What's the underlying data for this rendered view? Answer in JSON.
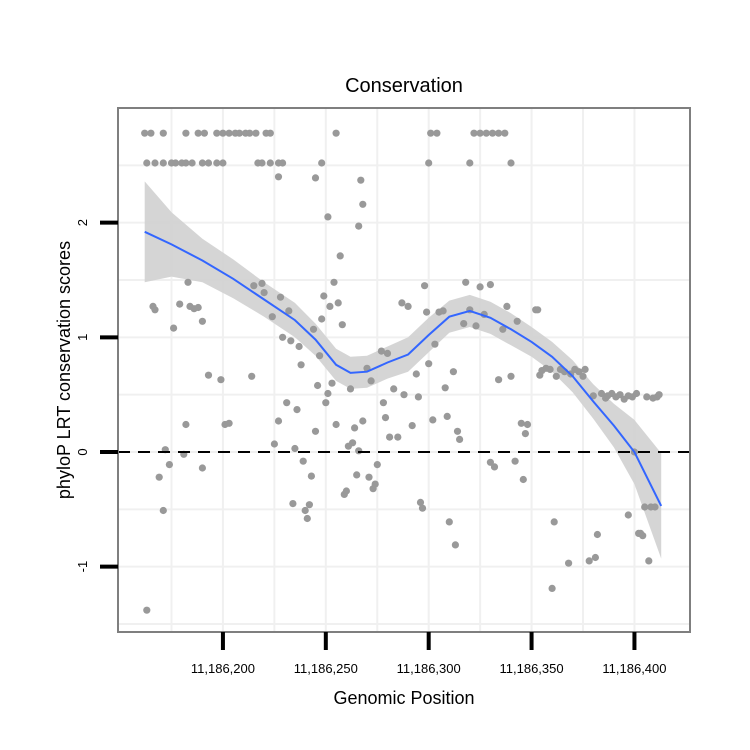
{
  "chart_data": {
    "type": "scatter",
    "title": "Conservation",
    "xlabel": "Genomic Position",
    "ylabel": "phyloP LRT conservation scores",
    "xlim": [
      11186149,
      11186427
    ],
    "ylim": [
      -1.57,
      3.0
    ],
    "x_ticks": [
      11186200,
      11186250,
      11186300,
      11186350,
      11186400
    ],
    "x_tick_labels": [
      "11,186,200",
      "11,186,250",
      "11,186,300",
      "11,186,350",
      "11,186,400"
    ],
    "y_ticks": [
      -1,
      0,
      1,
      2
    ],
    "y_tick_labels": [
      "-1",
      "0",
      "1",
      "2"
    ],
    "reference_line": {
      "y": 0,
      "style": "dashed",
      "color": "#000000"
    },
    "points_color": "#999999",
    "smooth_color": "#3366ff",
    "band_color": "#d0d0d0",
    "grid": true,
    "points": [
      [
        11186162,
        2.78
      ],
      [
        11186165,
        2.78
      ],
      [
        11186163,
        2.52
      ],
      [
        11186167,
        2.52
      ],
      [
        11186171,
        2.78
      ],
      [
        11186171,
        2.52
      ],
      [
        11186175,
        2.52
      ],
      [
        11186177,
        2.52
      ],
      [
        11186180,
        2.52
      ],
      [
        11186182,
        2.78
      ],
      [
        11186182,
        2.52
      ],
      [
        11186185,
        2.52
      ],
      [
        11186188,
        2.78
      ],
      [
        11186191,
        2.78
      ],
      [
        11186190,
        2.52
      ],
      [
        11186193,
        2.52
      ],
      [
        11186197,
        2.78
      ],
      [
        11186197,
        2.52
      ],
      [
        11186200,
        2.78
      ],
      [
        11186200,
        2.52
      ],
      [
        11186203,
        2.78
      ],
      [
        11186206,
        2.78
      ],
      [
        11186208,
        2.78
      ],
      [
        11186211,
        2.78
      ],
      [
        11186213,
        2.78
      ],
      [
        11186216,
        2.78
      ],
      [
        11186217,
        2.52
      ],
      [
        11186219,
        2.52
      ],
      [
        11186221,
        2.78
      ],
      [
        11186223,
        2.78
      ],
      [
        11186223,
        2.52
      ],
      [
        11186227,
        2.52
      ],
      [
        11186229,
        2.52
      ],
      [
        11186227,
        2.4
      ],
      [
        11186245,
        2.39
      ],
      [
        11186248,
        2.52
      ],
      [
        11186255,
        2.78
      ],
      [
        11186251,
        2.05
      ],
      [
        11186257,
        1.71
      ],
      [
        11186267,
        2.37
      ],
      [
        11186268,
        2.16
      ],
      [
        11186266,
        1.97
      ],
      [
        11186300,
        2.52
      ],
      [
        11186301,
        2.78
      ],
      [
        11186304,
        2.78
      ],
      [
        11186320,
        2.52
      ],
      [
        11186322,
        2.78
      ],
      [
        11186325,
        2.78
      ],
      [
        11186328,
        2.78
      ],
      [
        11186331,
        2.78
      ],
      [
        11186334,
        2.78
      ],
      [
        11186337,
        2.78
      ],
      [
        11186340,
        2.52
      ],
      [
        11186163,
        -1.38
      ],
      [
        11186166,
        1.27
      ],
      [
        11186167,
        1.24
      ],
      [
        11186169,
        -0.22
      ],
      [
        11186171,
        -0.51
      ],
      [
        11186172,
        0.02
      ],
      [
        11186174,
        -0.11
      ],
      [
        11186176,
        1.08
      ],
      [
        11186179,
        1.29
      ],
      [
        11186181,
        -0.02
      ],
      [
        11186182,
        0.24
      ],
      [
        11186183,
        1.48
      ],
      [
        11186184,
        1.27
      ],
      [
        11186186,
        1.25
      ],
      [
        11186188,
        1.26
      ],
      [
        11186190,
        1.14
      ],
      [
        11186190,
        -0.14
      ],
      [
        11186193,
        0.67
      ],
      [
        11186199,
        0.63
      ],
      [
        11186201,
        0.24
      ],
      [
        11186203,
        0.25
      ],
      [
        11186214,
        0.66
      ],
      [
        11186215,
        1.45
      ],
      [
        11186219,
        1.47
      ],
      [
        11186220,
        1.39
      ],
      [
        11186224,
        1.18
      ],
      [
        11186225,
        0.07
      ],
      [
        11186227,
        0.27
      ],
      [
        11186228,
        1.35
      ],
      [
        11186229,
        1.0
      ],
      [
        11186231,
        0.43
      ],
      [
        11186232,
        1.23
      ],
      [
        11186233,
        0.97
      ],
      [
        11186234,
        -0.45
      ],
      [
        11186235,
        0.03
      ],
      [
        11186236,
        0.37
      ],
      [
        11186237,
        0.92
      ],
      [
        11186238,
        0.76
      ],
      [
        11186239,
        -0.08
      ],
      [
        11186240,
        -0.51
      ],
      [
        11186241,
        -0.58
      ],
      [
        11186242,
        -0.46
      ],
      [
        11186243,
        -0.21
      ],
      [
        11186244,
        1.07
      ],
      [
        11186245,
        0.18
      ],
      [
        11186246,
        0.58
      ],
      [
        11186247,
        0.84
      ],
      [
        11186248,
        1.16
      ],
      [
        11186249,
        1.36
      ],
      [
        11186250,
        0.43
      ],
      [
        11186251,
        0.51
      ],
      [
        11186252,
        1.27
      ],
      [
        11186253,
        0.6
      ],
      [
        11186254,
        1.48
      ],
      [
        11186255,
        0.24
      ],
      [
        11186256,
        1.3
      ],
      [
        11186258,
        1.11
      ],
      [
        11186259,
        -0.37
      ],
      [
        11186260,
        -0.34
      ],
      [
        11186261,
        0.05
      ],
      [
        11186262,
        0.55
      ],
      [
        11186263,
        0.08
      ],
      [
        11186264,
        0.21
      ],
      [
        11186265,
        -0.2
      ],
      [
        11186266,
        0.01
      ],
      [
        11186268,
        0.27
      ],
      [
        11186270,
        0.73
      ],
      [
        11186271,
        -0.22
      ],
      [
        11186272,
        0.62
      ],
      [
        11186273,
        -0.32
      ],
      [
        11186274,
        -0.28
      ],
      [
        11186275,
        -0.11
      ],
      [
        11186277,
        0.88
      ],
      [
        11186278,
        0.43
      ],
      [
        11186279,
        0.3
      ],
      [
        11186280,
        0.86
      ],
      [
        11186281,
        0.13
      ],
      [
        11186283,
        0.55
      ],
      [
        11186285,
        0.13
      ],
      [
        11186287,
        1.3
      ],
      [
        11186288,
        0.5
      ],
      [
        11186290,
        1.27
      ],
      [
        11186292,
        0.23
      ],
      [
        11186294,
        0.68
      ],
      [
        11186295,
        0.48
      ],
      [
        11186296,
        -0.44
      ],
      [
        11186297,
        -0.49
      ],
      [
        11186298,
        1.45
      ],
      [
        11186299,
        1.22
      ],
      [
        11186300,
        0.77
      ],
      [
        11186302,
        0.28
      ],
      [
        11186303,
        0.94
      ],
      [
        11186305,
        1.22
      ],
      [
        11186307,
        1.23
      ],
      [
        11186308,
        0.56
      ],
      [
        11186309,
        0.31
      ],
      [
        11186310,
        -0.61
      ],
      [
        11186312,
        0.7
      ],
      [
        11186313,
        -0.81
      ],
      [
        11186314,
        0.18
      ],
      [
        11186315,
        0.11
      ],
      [
        11186317,
        1.12
      ],
      [
        11186318,
        1.48
      ],
      [
        11186320,
        1.24
      ],
      [
        11186323,
        1.1
      ],
      [
        11186325,
        1.44
      ],
      [
        11186327,
        1.2
      ],
      [
        11186330,
        1.46
      ],
      [
        11186330,
        -0.09
      ],
      [
        11186332,
        -0.13
      ],
      [
        11186334,
        0.63
      ],
      [
        11186336,
        1.07
      ],
      [
        11186338,
        1.27
      ],
      [
        11186340,
        0.66
      ],
      [
        11186342,
        -0.08
      ],
      [
        11186343,
        1.14
      ],
      [
        11186345,
        0.25
      ],
      [
        11186346,
        -0.24
      ],
      [
        11186347,
        0.16
      ],
      [
        11186348,
        0.24
      ],
      [
        11186352,
        1.24
      ],
      [
        11186353,
        1.24
      ],
      [
        11186354,
        0.67
      ],
      [
        11186355,
        0.71
      ],
      [
        11186357,
        0.73
      ],
      [
        11186359,
        0.72
      ],
      [
        11186360,
        -1.19
      ],
      [
        11186361,
        -0.61
      ],
      [
        11186362,
        0.66
      ],
      [
        11186364,
        0.72
      ],
      [
        11186366,
        0.7
      ],
      [
        11186368,
        -0.97
      ],
      [
        11186369,
        0.68
      ],
      [
        11186371,
        0.72
      ],
      [
        11186373,
        0.7
      ],
      [
        11186375,
        0.66
      ],
      [
        11186376,
        0.72
      ],
      [
        11186378,
        -0.95
      ],
      [
        11186380,
        0.49
      ],
      [
        11186381,
        -0.92
      ],
      [
        11186382,
        -0.72
      ],
      [
        11186384,
        0.51
      ],
      [
        11186386,
        0.47
      ],
      [
        11186387,
        0.49
      ],
      [
        11186389,
        0.51
      ],
      [
        11186391,
        0.48
      ],
      [
        11186393,
        0.5
      ],
      [
        11186395,
        0.46
      ],
      [
        11186397,
        0.49
      ],
      [
        11186399,
        0.48
      ],
      [
        11186401,
        0.51
      ],
      [
        11186400,
        0.0
      ],
      [
        11186402,
        -0.71
      ],
      [
        11186403,
        -0.71
      ],
      [
        11186404,
        -0.73
      ],
      [
        11186405,
        -0.48
      ],
      [
        11186406,
        0.48
      ],
      [
        11186407,
        -0.95
      ],
      [
        11186408,
        -0.48
      ],
      [
        11186409,
        0.47
      ],
      [
        11186410,
        -0.48
      ],
      [
        11186411,
        0.48
      ],
      [
        11186412,
        0.5
      ],
      [
        11186397,
        -0.55
      ]
    ],
    "smooth": {
      "x": [
        11186162,
        11186175,
        11186190,
        11186205,
        11186220,
        11186235,
        11186245,
        11186255,
        11186262,
        11186270,
        11186280,
        11186290,
        11186300,
        11186310,
        11186320,
        11186330,
        11186340,
        11186350,
        11186360,
        11186370,
        11186380,
        11186390,
        11186400,
        11186413
      ],
      "y": [
        1.92,
        1.81,
        1.67,
        1.51,
        1.33,
        1.15,
        0.98,
        0.76,
        0.69,
        0.7,
        0.78,
        0.85,
        1.02,
        1.18,
        1.23,
        1.17,
        1.07,
        0.96,
        0.83,
        0.66,
        0.44,
        0.23,
        0.0,
        -0.47
      ],
      "lower": [
        1.48,
        1.53,
        1.48,
        1.34,
        1.18,
        1.0,
        0.84,
        0.62,
        0.55,
        0.56,
        0.64,
        0.7,
        0.87,
        1.04,
        1.09,
        1.03,
        0.93,
        0.83,
        0.7,
        0.52,
        0.29,
        0.04,
        -0.28,
        -0.93
      ],
      "upper": [
        2.36,
        2.09,
        1.86,
        1.68,
        1.48,
        1.3,
        1.12,
        0.9,
        0.83,
        0.84,
        0.92,
        1.0,
        1.17,
        1.32,
        1.37,
        1.31,
        1.21,
        1.09,
        0.96,
        0.8,
        0.59,
        0.42,
        0.28,
        -0.01
      ]
    }
  }
}
